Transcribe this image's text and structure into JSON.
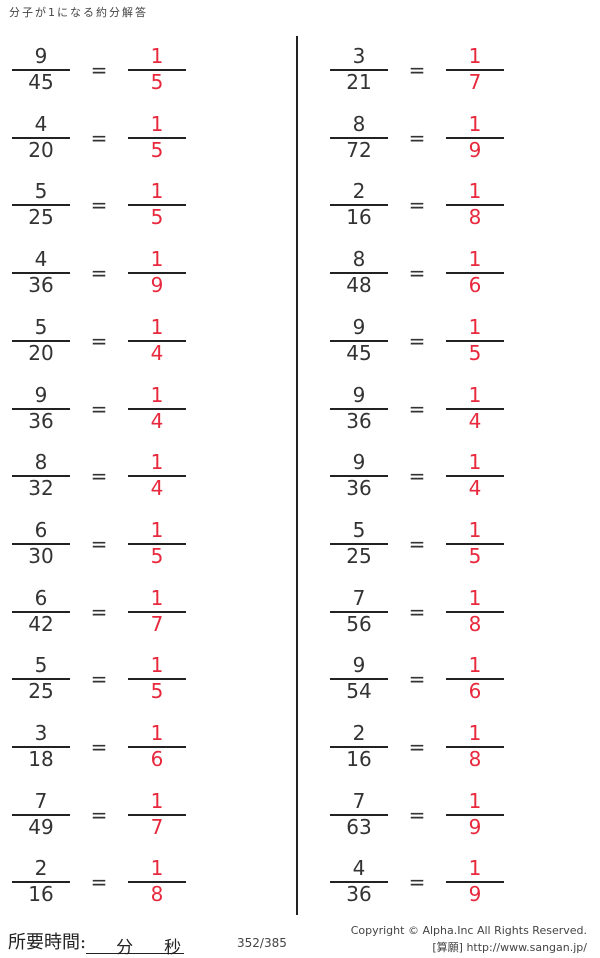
{
  "title": "分子が1になる約分解答",
  "columns": [
    [
      {
        "num": "9",
        "den": "45",
        "ans_num": "1",
        "ans_den": "5"
      },
      {
        "num": "4",
        "den": "20",
        "ans_num": "1",
        "ans_den": "5"
      },
      {
        "num": "5",
        "den": "25",
        "ans_num": "1",
        "ans_den": "5"
      },
      {
        "num": "4",
        "den": "36",
        "ans_num": "1",
        "ans_den": "9"
      },
      {
        "num": "5",
        "den": "20",
        "ans_num": "1",
        "ans_den": "4"
      },
      {
        "num": "9",
        "den": "36",
        "ans_num": "1",
        "ans_den": "4"
      },
      {
        "num": "8",
        "den": "32",
        "ans_num": "1",
        "ans_den": "4"
      },
      {
        "num": "6",
        "den": "30",
        "ans_num": "1",
        "ans_den": "5"
      },
      {
        "num": "6",
        "den": "42",
        "ans_num": "1",
        "ans_den": "7"
      },
      {
        "num": "5",
        "den": "25",
        "ans_num": "1",
        "ans_den": "5"
      },
      {
        "num": "3",
        "den": "18",
        "ans_num": "1",
        "ans_den": "6"
      },
      {
        "num": "7",
        "den": "49",
        "ans_num": "1",
        "ans_den": "7"
      },
      {
        "num": "2",
        "den": "16",
        "ans_num": "1",
        "ans_den": "8"
      }
    ],
    [
      {
        "num": "3",
        "den": "21",
        "ans_num": "1",
        "ans_den": "7"
      },
      {
        "num": "8",
        "den": "72",
        "ans_num": "1",
        "ans_den": "9"
      },
      {
        "num": "2",
        "den": "16",
        "ans_num": "1",
        "ans_den": "8"
      },
      {
        "num": "8",
        "den": "48",
        "ans_num": "1",
        "ans_den": "6"
      },
      {
        "num": "9",
        "den": "45",
        "ans_num": "1",
        "ans_den": "5"
      },
      {
        "num": "9",
        "den": "36",
        "ans_num": "1",
        "ans_den": "4"
      },
      {
        "num": "9",
        "den": "36",
        "ans_num": "1",
        "ans_den": "4"
      },
      {
        "num": "5",
        "den": "25",
        "ans_num": "1",
        "ans_den": "5"
      },
      {
        "num": "7",
        "den": "56",
        "ans_num": "1",
        "ans_den": "8"
      },
      {
        "num": "9",
        "den": "54",
        "ans_num": "1",
        "ans_den": "6"
      },
      {
        "num": "2",
        "den": "16",
        "ans_num": "1",
        "ans_den": "8"
      },
      {
        "num": "7",
        "den": "63",
        "ans_num": "1",
        "ans_den": "9"
      },
      {
        "num": "4",
        "den": "36",
        "ans_num": "1",
        "ans_den": "9"
      }
    ]
  ],
  "equals": "=",
  "footer": {
    "time_label": "所要時間:",
    "minutes": "分",
    "seconds": "秒",
    "page": "352/385",
    "copyright": "Copyright ©  Alpha.Inc All Rights Reserved.",
    "site": "[算願] http://www.sangan.jp/"
  },
  "colors": {
    "answer": "#e8283c"
  }
}
